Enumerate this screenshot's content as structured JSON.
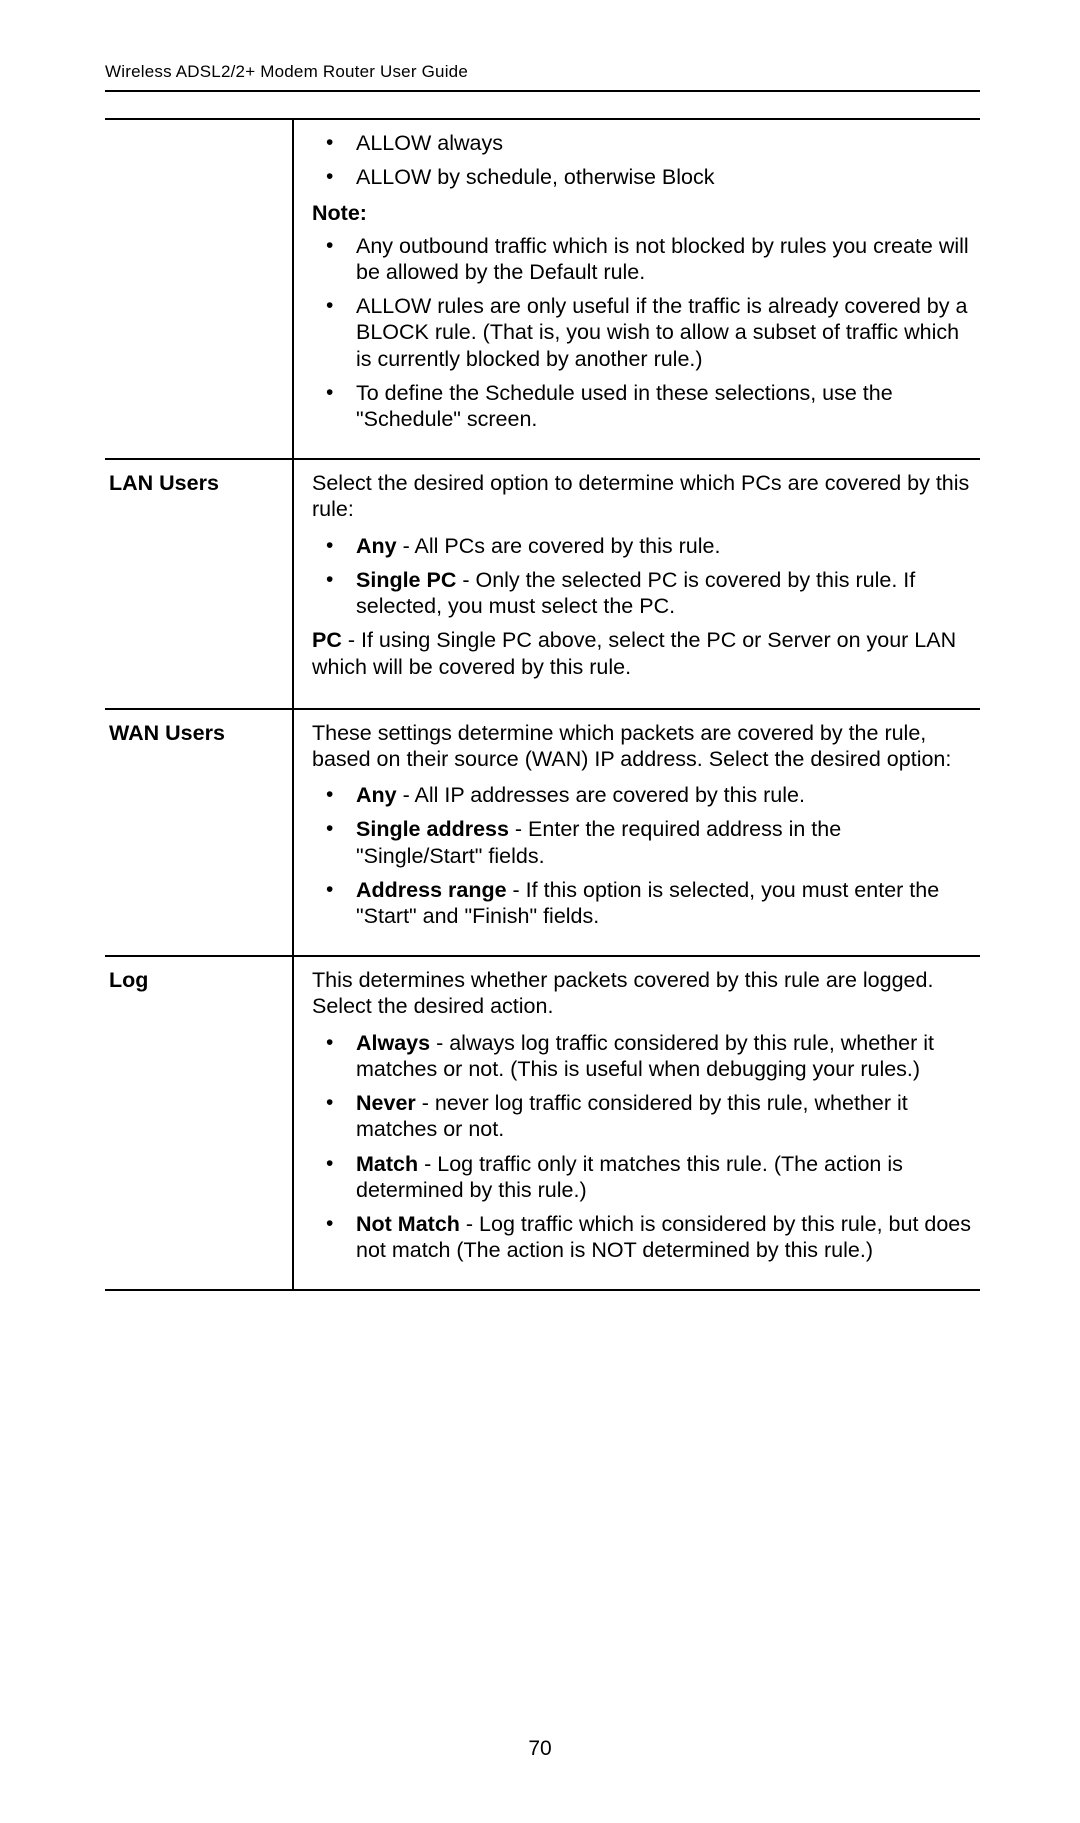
{
  "header": {
    "title": "Wireless ADSL2/2+ Modem Router User Guide"
  },
  "page_number": "70",
  "rows": [
    {
      "label": "",
      "sections": [
        {
          "type": "bullets",
          "items": [
            {
              "text": "ALLOW always"
            },
            {
              "text": "ALLOW by schedule, otherwise Block"
            }
          ]
        },
        {
          "type": "note_label",
          "text": "Note:"
        },
        {
          "type": "bullets",
          "items": [
            {
              "text": "Any outbound traffic which is not blocked by rules you create will be allowed by the Default rule."
            },
            {
              "text": "ALLOW rules are only useful if the traffic is already covered by a BLOCK rule. (That is, you wish to allow a subset of traffic which is currently blocked by another rule.)"
            },
            {
              "text": "To define the Schedule used in these selections, use the \"Schedule\" screen."
            }
          ]
        }
      ]
    },
    {
      "label": "LAN Users",
      "sections": [
        {
          "type": "para",
          "text": "Select the desired option to determine which PCs are covered by this rule:"
        },
        {
          "type": "bullets",
          "items": [
            {
              "term": "Any",
              "text": " - All PCs are covered by this rule."
            },
            {
              "term": "Single PC",
              "text": " - Only the selected PC is covered by this rule. If selected, you must select the PC."
            }
          ]
        },
        {
          "type": "para_term",
          "term": "PC",
          "text": " - If using Single PC above, select the PC or Server on your LAN which will be covered by this rule."
        }
      ]
    },
    {
      "label": "WAN Users",
      "sections": [
        {
          "type": "para",
          "text": "These settings determine which packets are covered by the rule, based on their source (WAN) IP address. Select the desired option:"
        },
        {
          "type": "bullets",
          "items": [
            {
              "term": "Any",
              "text": " - All IP addresses are covered by this rule."
            },
            {
              "term": "Single address",
              "text": " - Enter the required address in the \"Single/Start\" fields."
            },
            {
              "term": "Address range",
              "text": " - If this option is selected, you must enter the \"Start\" and \"Finish\" fields."
            }
          ]
        }
      ]
    },
    {
      "label": "Log",
      "sections": [
        {
          "type": "para",
          "text": "This determines whether packets covered by this rule are logged. Select the desired action."
        },
        {
          "type": "bullets",
          "items": [
            {
              "term": "Always",
              "text": " - always log traffic considered by this rule, whether it matches or not. (This is useful when debugging your rules.)"
            },
            {
              "term": "Never",
              "text": " - never log traffic considered by this rule, whether it matches or not."
            },
            {
              "term": "Match",
              "text": " - Log traffic only it matches this rule. (The action is determined by this rule.)"
            },
            {
              "term": "Not Match",
              "text": " - Log traffic which is considered by this rule, but does not match (The action is NOT determined by this rule.)"
            }
          ]
        }
      ]
    }
  ]
}
